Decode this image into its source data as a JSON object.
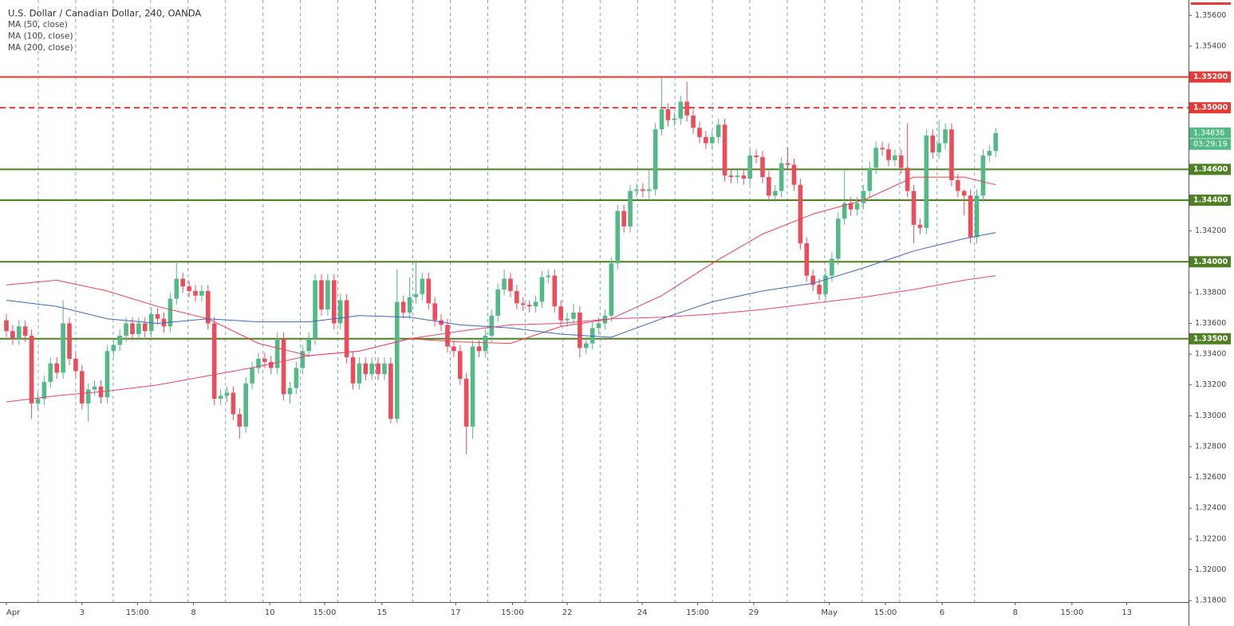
{
  "chart_data": {
    "type": "candlestick",
    "title": "U.S. Dollar / Canadian Dollar, 240, OANDA",
    "up_color": "#53b987",
    "down_color": "#eb4d5c",
    "open": [
      1.3362,
      1.3355,
      1.335,
      1.3358,
      1.3352,
      1.3308,
      1.3311,
      1.3322,
      1.3334,
      1.3328,
      1.336,
      1.3337,
      1.3329,
      1.3308,
      1.3317,
      1.3319,
      1.3312,
      1.3342,
      1.3346,
      1.3352,
      1.336,
      1.3353,
      1.336,
      1.3355,
      1.3366,
      1.3363,
      1.3358,
      1.3376,
      1.3389,
      1.3384,
      1.3381,
      1.3378,
      1.3381,
      1.336,
      1.3311,
      1.3313,
      1.3315,
      1.3301,
      1.3293,
      1.3321,
      1.3331,
      1.3337,
      1.3335,
      1.3331,
      1.335,
      1.3314,
      1.3318,
      1.3331,
      1.3342,
      1.335,
      1.3388,
      1.3369,
      1.3388,
      1.336,
      1.3375,
      1.3338,
      1.3321,
      1.3334,
      1.3327,
      1.3334,
      1.3327,
      1.3334,
      1.3298,
      1.3374,
      1.3367,
      1.3377,
      1.3379,
      1.3389,
      1.3373,
      1.3362,
      1.3359,
      1.3345,
      1.3342,
      1.3324,
      1.3293,
      1.3345,
      1.3342,
      1.3352,
      1.3365,
      1.3382,
      1.3389,
      1.3381,
      1.3373,
      1.3372,
      1.3371,
      1.3374,
      1.339,
      1.3391,
      1.3371,
      1.3362,
      1.3363,
      1.3367,
      1.3344,
      1.3347,
      1.3357,
      1.336,
      1.3365,
      1.3399,
      1.3433,
      1.3423,
      1.3446,
      1.3447,
      1.3446,
      1.3447,
      1.3486,
      1.3499,
      1.3492,
      1.3493,
      1.3504,
      1.3495,
      1.3487,
      1.3481,
      1.3477,
      1.3481,
      1.3489,
      1.3456,
      1.3455,
      1.3456,
      1.3454,
      1.3469,
      1.3468,
      1.3455,
      1.3443,
      1.3446,
      1.3464,
      1.3463,
      1.345,
      1.3412,
      1.3391,
      1.3385,
      1.3379,
      1.3391,
      1.3402,
      1.3428,
      1.3438,
      1.3434,
      1.3438,
      1.3446,
      1.3461,
      1.3474,
      1.3473,
      1.3466,
      1.3469,
      1.3461,
      1.3446,
      1.3424,
      1.3422,
      1.3482,
      1.3471,
      1.3477,
      1.3486,
      1.3453,
      1.3446,
      1.3443,
      1.3416,
      1.3443,
      1.3469,
      1.3472
    ],
    "high": [
      1.3366,
      1.3359,
      1.3362,
      1.3362,
      1.3356,
      1.3315,
      1.3326,
      1.3338,
      1.3338,
      1.3375,
      1.3364,
      1.3341,
      1.3333,
      1.3321,
      1.3323,
      1.3323,
      1.3346,
      1.335,
      1.3356,
      1.3364,
      1.3364,
      1.3364,
      1.3364,
      1.337,
      1.337,
      1.3367,
      1.338,
      1.3401,
      1.3393,
      1.3388,
      1.3385,
      1.3385,
      1.3385,
      1.3364,
      1.3317,
      1.3319,
      1.3319,
      1.3305,
      1.3325,
      1.3335,
      1.3341,
      1.3341,
      1.3339,
      1.3354,
      1.3354,
      1.3322,
      1.3335,
      1.3346,
      1.3354,
      1.3392,
      1.3392,
      1.3392,
      1.3392,
      1.3379,
      1.3379,
      1.3342,
      1.3338,
      1.3338,
      1.3338,
      1.3338,
      1.3338,
      1.3338,
      1.3395,
      1.3378,
      1.339,
      1.3401,
      1.3393,
      1.3393,
      1.3377,
      1.3366,
      1.3363,
      1.3349,
      1.3346,
      1.3328,
      1.3349,
      1.3349,
      1.3356,
      1.3369,
      1.3386,
      1.3395,
      1.3393,
      1.3385,
      1.3377,
      1.3375,
      1.3378,
      1.3394,
      1.3395,
      1.3395,
      1.3375,
      1.3367,
      1.3373,
      1.3371,
      1.3351,
      1.3361,
      1.3364,
      1.3369,
      1.3403,
      1.3437,
      1.3437,
      1.345,
      1.3451,
      1.3451,
      1.346,
      1.349,
      1.352,
      1.3503,
      1.3497,
      1.3508,
      1.3517,
      1.3499,
      1.3491,
      1.3485,
      1.3485,
      1.3493,
      1.3493,
      1.346,
      1.346,
      1.346,
      1.3473,
      1.3473,
      1.3472,
      1.3459,
      1.345,
      1.3468,
      1.3474,
      1.3467,
      1.3454,
      1.3416,
      1.3395,
      1.3389,
      1.3395,
      1.3406,
      1.3432,
      1.346,
      1.3442,
      1.3442,
      1.345,
      1.3465,
      1.3478,
      1.3478,
      1.3477,
      1.3473,
      1.3473,
      1.349,
      1.345,
      1.3428,
      1.3486,
      1.3486,
      1.3492,
      1.349,
      1.349,
      1.3457,
      1.3447,
      1.3447,
      1.3447,
      1.3473,
      1.3476,
      1.3487
    ],
    "low": [
      1.3351,
      1.3346,
      1.3346,
      1.3348,
      1.3298,
      1.3304,
      1.3307,
      1.3318,
      1.3324,
      1.3324,
      1.3333,
      1.3325,
      1.3304,
      1.3296,
      1.3313,
      1.3308,
      1.3308,
      1.3338,
      1.3342,
      1.3348,
      1.3349,
      1.3349,
      1.3351,
      1.3351,
      1.3359,
      1.3354,
      1.3354,
      1.3372,
      1.338,
      1.3377,
      1.3374,
      1.3374,
      1.3356,
      1.3307,
      1.3307,
      1.3309,
      1.3297,
      1.3285,
      1.3289,
      1.3317,
      1.3327,
      1.3331,
      1.3327,
      1.3327,
      1.331,
      1.3308,
      1.3314,
      1.3327,
      1.3338,
      1.3346,
      1.3365,
      1.3365,
      1.3356,
      1.3356,
      1.3334,
      1.3317,
      1.3317,
      1.3323,
      1.3323,
      1.3323,
      1.3323,
      1.3295,
      1.3295,
      1.3363,
      1.3363,
      1.3373,
      1.3375,
      1.3369,
      1.3358,
      1.3355,
      1.3341,
      1.3338,
      1.332,
      1.3275,
      1.3285,
      1.3338,
      1.3338,
      1.3348,
      1.3361,
      1.3378,
      1.3377,
      1.3369,
      1.3368,
      1.3367,
      1.3367,
      1.337,
      1.3386,
      1.3367,
      1.3358,
      1.3358,
      1.3359,
      1.3338,
      1.334,
      1.3343,
      1.3353,
      1.3356,
      1.3361,
      1.3395,
      1.3419,
      1.3419,
      1.3442,
      1.3442,
      1.344,
      1.3443,
      1.3482,
      1.3488,
      1.3488,
      1.3489,
      1.3491,
      1.3483,
      1.3477,
      1.3473,
      1.3473,
      1.3477,
      1.3452,
      1.3451,
      1.3451,
      1.345,
      1.345,
      1.3464,
      1.3451,
      1.3439,
      1.3439,
      1.3442,
      1.3459,
      1.3446,
      1.3408,
      1.3387,
      1.3381,
      1.3375,
      1.3375,
      1.3387,
      1.3398,
      1.3424,
      1.343,
      1.343,
      1.3434,
      1.3442,
      1.3457,
      1.3469,
      1.3462,
      1.3462,
      1.3457,
      1.3442,
      1.3412,
      1.3418,
      1.3418,
      1.3467,
      1.3467,
      1.3473,
      1.3449,
      1.3442,
      1.343,
      1.3412,
      1.3412,
      1.3439,
      1.3465,
      1.3468
    ],
    "close": [
      1.3355,
      1.335,
      1.3358,
      1.3352,
      1.3308,
      1.3311,
      1.3322,
      1.3334,
      1.3328,
      1.336,
      1.3337,
      1.3329,
      1.3308,
      1.3317,
      1.3319,
      1.3312,
      1.3342,
      1.3346,
      1.3352,
      1.336,
      1.3353,
      1.336,
      1.3355,
      1.3366,
      1.3363,
      1.3358,
      1.3376,
      1.3389,
      1.3384,
      1.3381,
      1.3378,
      1.3381,
      1.336,
      1.3311,
      1.3313,
      1.3315,
      1.3301,
      1.3293,
      1.3321,
      1.3331,
      1.3337,
      1.3335,
      1.3331,
      1.335,
      1.3314,
      1.3318,
      1.3331,
      1.3342,
      1.335,
      1.3388,
      1.3369,
      1.3388,
      1.336,
      1.3375,
      1.3338,
      1.3321,
      1.3334,
      1.3327,
      1.3334,
      1.3327,
      1.3334,
      1.3298,
      1.3374,
      1.3367,
      1.3377,
      1.3379,
      1.3389,
      1.3373,
      1.3362,
      1.3359,
      1.3345,
      1.3342,
      1.3324,
      1.3293,
      1.3345,
      1.3342,
      1.3352,
      1.3365,
      1.3382,
      1.3389,
      1.3381,
      1.3373,
      1.3372,
      1.3371,
      1.3374,
      1.339,
      1.3391,
      1.3371,
      1.3362,
      1.3363,
      1.3367,
      1.3344,
      1.3347,
      1.3357,
      1.336,
      1.3365,
      1.3399,
      1.3433,
      1.3423,
      1.3446,
      1.3447,
      1.3446,
      1.3447,
      1.3486,
      1.3499,
      1.3492,
      1.3493,
      1.3504,
      1.3495,
      1.3487,
      1.3481,
      1.3477,
      1.3481,
      1.3489,
      1.3456,
      1.3455,
      1.3456,
      1.3454,
      1.3469,
      1.3468,
      1.3455,
      1.3443,
      1.3446,
      1.3464,
      1.3463,
      1.345,
      1.3412,
      1.3391,
      1.3385,
      1.3379,
      1.3391,
      1.3402,
      1.3428,
      1.3438,
      1.3434,
      1.3438,
      1.3446,
      1.3461,
      1.3474,
      1.3473,
      1.3466,
      1.3469,
      1.3461,
      1.3446,
      1.3424,
      1.3422,
      1.3482,
      1.3471,
      1.3477,
      1.3486,
      1.3453,
      1.3446,
      1.3443,
      1.3416,
      1.3443,
      1.3469,
      1.3472,
      1.34836
    ],
    "countdown": "03:29:19",
    "series": [
      {
        "name": "MA (50, close)",
        "color": "#e8424f",
        "x": [
          0,
          8,
          16,
          24,
          32,
          40,
          48,
          56,
          64,
          72,
          80,
          88,
          96,
          104,
          112,
          120,
          128,
          136,
          144,
          152,
          157
        ],
        "values": [
          1.3385,
          1.3388,
          1.3381,
          1.3371,
          1.3363,
          1.3347,
          1.3339,
          1.3342,
          1.335,
          1.3348,
          1.3347,
          1.3358,
          1.3363,
          1.3378,
          1.3399,
          1.3418,
          1.3431,
          1.344,
          1.3455,
          1.3455,
          1.345
        ]
      },
      {
        "name": "MA (100, close)",
        "color": "#3d68b8",
        "x": [
          0,
          8,
          16,
          24,
          32,
          40,
          48,
          56,
          64,
          72,
          80,
          88,
          96,
          104,
          112,
          120,
          128,
          136,
          144,
          152,
          157
        ],
        "values": [
          1.3375,
          1.3371,
          1.3363,
          1.336,
          1.3363,
          1.3361,
          1.3361,
          1.3365,
          1.3364,
          1.3359,
          1.3357,
          1.3353,
          1.3351,
          1.3363,
          1.3374,
          1.3381,
          1.3386,
          1.3396,
          1.3407,
          1.3415,
          1.3419
        ]
      },
      {
        "name": "MA (200, close)",
        "color": "#e0457b",
        "x": [
          0,
          8,
          16,
          24,
          32,
          40,
          48,
          56,
          64,
          72,
          80,
          88,
          96,
          104,
          112,
          120,
          128,
          136,
          144,
          152,
          157
        ],
        "values": [
          1.3309,
          1.3313,
          1.3316,
          1.332,
          1.3326,
          1.3332,
          1.3339,
          1.3342,
          1.335,
          1.3355,
          1.3359,
          1.336,
          1.3363,
          1.3364,
          1.3366,
          1.3369,
          1.3373,
          1.3377,
          1.3382,
          1.3388,
          1.3391
        ]
      }
    ],
    "levels": [
      {
        "value": 1.352,
        "label": "1.35200",
        "color": "#e53935",
        "dashed": false
      },
      {
        "value": 1.35,
        "label": "1.35000",
        "color": "#e53935",
        "dashed": true
      },
      {
        "value": 1.346,
        "label": "1.34600",
        "color": "#4f7f23",
        "dashed": false
      },
      {
        "value": 1.344,
        "label": "1.34400",
        "color": "#4f7f23",
        "dashed": false
      },
      {
        "value": 1.34,
        "label": "1.34000",
        "color": "#4f7f23",
        "dashed": false
      },
      {
        "value": 1.335,
        "label": "1.33500",
        "color": "#4f7f23",
        "dashed": false
      }
    ],
    "xlim": [
      -1.0127,
      187.6
    ],
    "xticks": [
      {
        "value": 0,
        "label": "Apr"
      },
      {
        "value": 12,
        "label": "3"
      },
      {
        "value": 20.8,
        "label": "15:00"
      },
      {
        "value": 29.7,
        "label": "8"
      },
      {
        "value": 41.8,
        "label": "10"
      },
      {
        "value": 50.5,
        "label": "15:00"
      },
      {
        "value": 59.6,
        "label": "15"
      },
      {
        "value": 71.3,
        "label": "17"
      },
      {
        "value": 80.3,
        "label": "15:00"
      },
      {
        "value": 89,
        "label": "22"
      },
      {
        "value": 100.9,
        "label": "24"
      },
      {
        "value": 109.7,
        "label": "15:00"
      },
      {
        "value": 118.6,
        "label": "29"
      },
      {
        "value": 130.6,
        "label": "May"
      },
      {
        "value": 139.5,
        "label": "15:00"
      },
      {
        "value": 148.5,
        "label": "6"
      },
      {
        "value": 160.1,
        "label": "8"
      },
      {
        "value": 169.1,
        "label": "15:00"
      },
      {
        "value": 177.8,
        "label": "13"
      }
    ],
    "ylim": [
      1.3179,
      1.357
    ],
    "yticks": [
      {
        "value": 1.318,
        "label": "1.31800"
      },
      {
        "value": 1.32,
        "label": "1.32000"
      },
      {
        "value": 1.322,
        "label": "1.32200"
      },
      {
        "value": 1.324,
        "label": "1.32400"
      },
      {
        "value": 1.326,
        "label": "1.32600"
      },
      {
        "value": 1.328,
        "label": "1.32800"
      },
      {
        "value": 1.33,
        "label": "1.33000"
      },
      {
        "value": 1.332,
        "label": "1.33200"
      },
      {
        "value": 1.334,
        "label": "1.33400"
      },
      {
        "value": 1.336,
        "label": "1.33600"
      },
      {
        "value": 1.338,
        "label": "1.33800"
      },
      {
        "value": 1.34,
        "label": "1.34000"
      },
      {
        "value": 1.342,
        "label": "1.34200"
      },
      {
        "value": 1.344,
        "label": "1.34400"
      },
      {
        "value": 1.346,
        "label": "1.34600"
      },
      {
        "value": 1.348,
        "label": "1.34800"
      },
      {
        "value": 1.35,
        "label": "1.35000"
      },
      {
        "value": 1.352,
        "label": "1.35200"
      },
      {
        "value": 1.354,
        "label": "1.35400"
      },
      {
        "value": 1.356,
        "label": "1.35600"
      }
    ]
  }
}
